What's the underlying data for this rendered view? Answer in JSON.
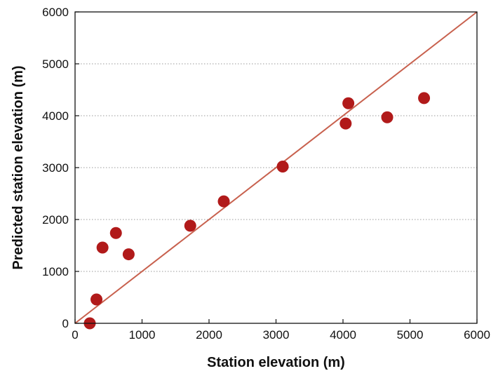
{
  "chart_data": {
    "type": "scatter",
    "title": "",
    "xlabel": "Station elevation (m)",
    "ylabel": "Predicted station elevation (m)",
    "xlim": [
      0,
      6000
    ],
    "ylim": [
      0,
      6000
    ],
    "x_ticks": [
      0,
      1000,
      2000,
      3000,
      4000,
      5000,
      6000
    ],
    "y_ticks": [
      0,
      1000,
      2000,
      3000,
      4000,
      5000,
      6000
    ],
    "x_tick_labels": [
      "0",
      "1000",
      "2000",
      "3000",
      "4000",
      "5000",
      "6000"
    ],
    "y_tick_labels": [
      "0",
      "1000",
      "2000",
      "3000",
      "4000",
      "5000",
      "6000"
    ],
    "grid": "horizontal dotted",
    "colors": {
      "points": "#b11a1a",
      "identity_line": "#c8614e"
    },
    "reference_line": {
      "type": "1:1",
      "from": [
        0,
        0
      ],
      "to": [
        6000,
        6000
      ]
    },
    "series": [
      {
        "points": [
          {
            "x": 220,
            "y": 0
          },
          {
            "x": 320,
            "y": 460
          },
          {
            "x": 410,
            "y": 1460
          },
          {
            "x": 610,
            "y": 1740
          },
          {
            "x": 800,
            "y": 1330
          },
          {
            "x": 1720,
            "y": 1880
          },
          {
            "x": 2220,
            "y": 2350
          },
          {
            "x": 3100,
            "y": 3020
          },
          {
            "x": 4040,
            "y": 3850
          },
          {
            "x": 4080,
            "y": 4240
          },
          {
            "x": 4660,
            "y": 3970
          },
          {
            "x": 5210,
            "y": 4340
          }
        ]
      }
    ]
  }
}
